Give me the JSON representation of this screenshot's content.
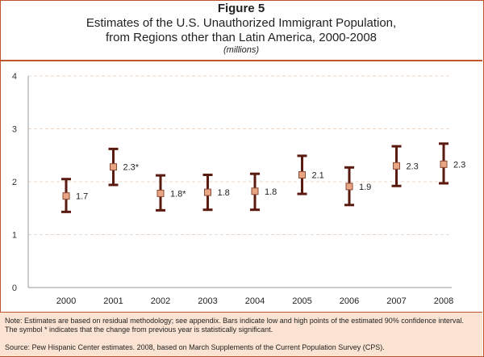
{
  "header": {
    "figure_label": "Figure 5",
    "title_line1": "Estimates of the U.S. Unauthorized Immigrant Population,",
    "title_line2": "from Regions other than Latin America, 2000-2008",
    "unit": "(millions)"
  },
  "footer": {
    "note": "Note: Estimates are based on residual methodology; see appendix. Bars indicate low and high points of the estimated 90% confidence interval. The symbol * indicates that the change from previous year is statistically significant.",
    "source": "Source: Pew Hispanic Center estimates. 2008, based on March Supplements of the Current Population Survey (CPS)."
  },
  "colors": {
    "frame": "#c0552b",
    "error_bar": "#5a1a10",
    "marker_fill": "#e8a583",
    "marker_stroke": "#8a4a35",
    "gridline": "#ecd8c8",
    "footer_bg": "#fbe3d3"
  },
  "chart_data": {
    "type": "scatter",
    "title": "Estimates of the U.S. Unauthorized Immigrant Population, from Regions other than Latin America, 2000-2008",
    "xlabel": "",
    "ylabel": "",
    "categories": [
      "2000",
      "2001",
      "2002",
      "2003",
      "2004",
      "2005",
      "2006",
      "2007",
      "2008"
    ],
    "values": [
      1.73,
      2.28,
      1.78,
      1.8,
      1.82,
      2.13,
      1.91,
      2.3,
      2.33
    ],
    "low": [
      1.43,
      1.94,
      1.46,
      1.47,
      1.47,
      1.77,
      1.56,
      1.92,
      1.97
    ],
    "high": [
      2.05,
      2.62,
      2.12,
      2.13,
      2.15,
      2.49,
      2.27,
      2.67,
      2.72
    ],
    "data_labels": [
      "1.7",
      "2.3*",
      "1.8*",
      "1.8",
      "1.8",
      "2.1",
      "1.9",
      "2.3",
      "2.3"
    ],
    "y_ticks": [
      "0",
      "1",
      "2",
      "3",
      "4"
    ],
    "ylim": [
      0,
      4
    ],
    "grid": true,
    "legend": "none",
    "error_bars": "90% confidence interval"
  }
}
